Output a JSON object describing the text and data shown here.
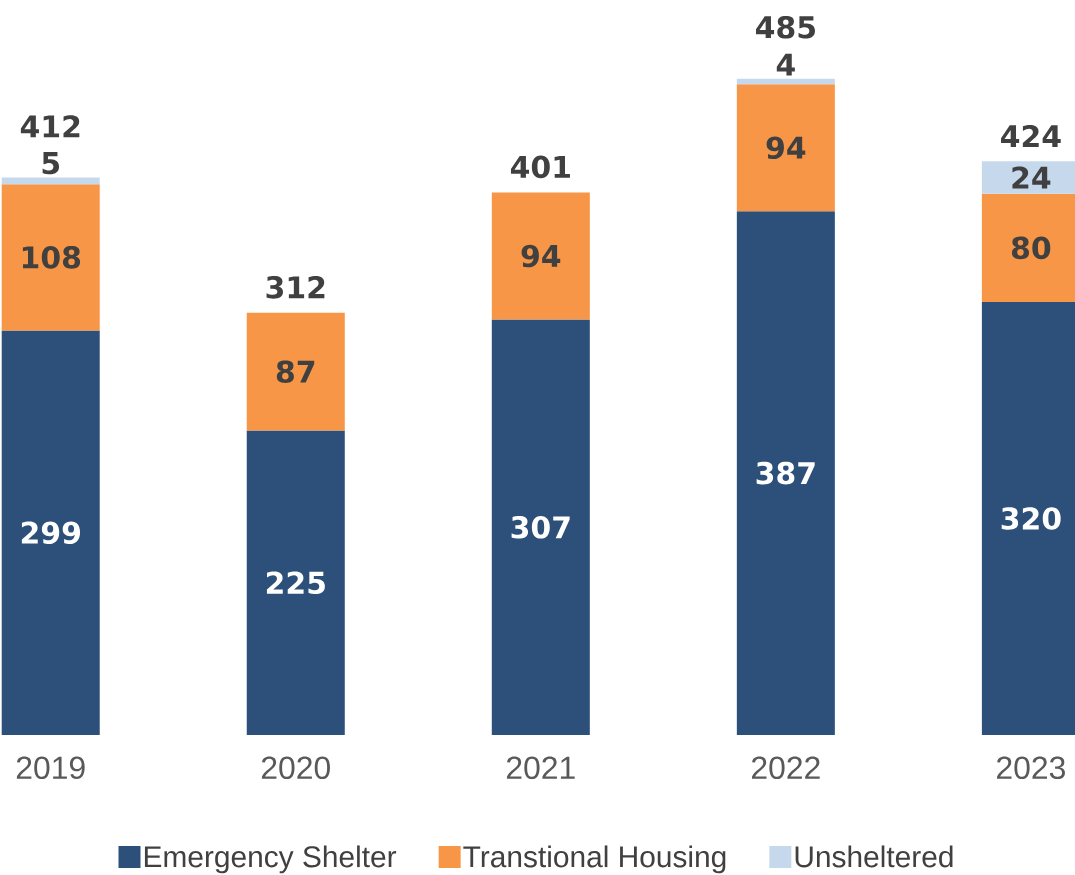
{
  "chart_data": {
    "type": "bar",
    "stacked": true,
    "data_labels": true,
    "legend": "bottom",
    "categories": [
      "2019",
      "2020",
      "2021",
      "2022",
      "2023"
    ],
    "series": [
      {
        "name": "Emergency Shelter",
        "color": "#2c5079",
        "values": [
          299,
          225,
          307,
          387,
          320
        ]
      },
      {
        "name": "Transtional Housing",
        "color": "#f79646",
        "values": [
          108,
          87,
          94,
          94,
          80
        ]
      },
      {
        "name": "Unsheltered",
        "color": "#c6d9ec",
        "values": [
          5,
          null,
          null,
          4,
          24
        ]
      }
    ],
    "totals": [
      "412",
      "312",
      "401",
      "485",
      "424"
    ]
  }
}
